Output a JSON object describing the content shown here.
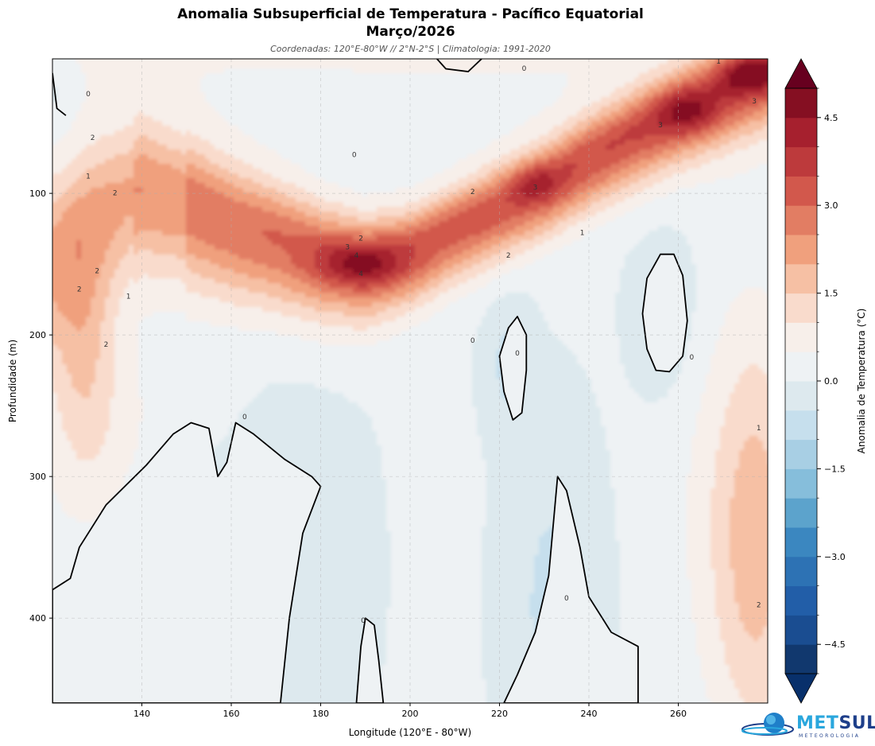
{
  "title_line_1": "Anomalia Subsuperficial de Temperatura - Pacífico Equatorial",
  "title_line_2": "Março/2026",
  "subtitle": "Coordenadas: 120°E-80°W // 2°N-2°S | Climatologia: 1991-2020",
  "logo": {
    "brand_part_1": "MET",
    "brand_part_2": "SUL",
    "tagline": "METEOROLOGIA"
  },
  "chart_data": {
    "type": "heatmap",
    "subtype": "filled-contour",
    "xlabel": "Longitude (120°E - 80°W)",
    "ylabel": "Profundidade (m)",
    "xlim": [
      120,
      280
    ],
    "ylim": [
      460,
      5
    ],
    "y_inverted": true,
    "x_ticks": [
      140,
      160,
      180,
      200,
      220,
      240,
      260
    ],
    "y_ticks": [
      100,
      200,
      300,
      400
    ],
    "grid": true,
    "colorbar": {
      "label": "Anomalia de Temperatura (°C)",
      "colormap": "RdBu_r",
      "min": -5,
      "max": 5,
      "step": 0.5,
      "extend": "both",
      "ticks": [
        4.5,
        3.0,
        1.5,
        0.0,
        -1.5,
        -3.0,
        -4.5
      ],
      "tick_labels": [
        "4.5",
        "3.0",
        "1.5",
        "0.0",
        "−1.5",
        "−3.0",
        "−4.5"
      ]
    },
    "contour_levels": [
      0,
      1,
      2,
      3,
      4
    ],
    "zero_contour": "thick black line",
    "contour_labels": [
      {
        "text": "0",
        "x": 128,
        "y": 30
      },
      {
        "text": "0",
        "x": 187.5,
        "y": 73
      },
      {
        "text": "0",
        "x": 225.5,
        "y": 12
      },
      {
        "text": "1",
        "x": 128,
        "y": 88
      },
      {
        "text": "1",
        "x": 137,
        "y": 173
      },
      {
        "text": "1",
        "x": 238.5,
        "y": 128
      },
      {
        "text": "1",
        "x": 278,
        "y": 266
      },
      {
        "text": "1",
        "x": 269,
        "y": 7
      },
      {
        "text": "2",
        "x": 129,
        "y": 61
      },
      {
        "text": "2",
        "x": 130,
        "y": 155
      },
      {
        "text": "2",
        "x": 126,
        "y": 168
      },
      {
        "text": "2",
        "x": 132,
        "y": 207
      },
      {
        "text": "2",
        "x": 134,
        "y": 100
      },
      {
        "text": "2",
        "x": 189,
        "y": 132
      },
      {
        "text": "2",
        "x": 214,
        "y": 99
      },
      {
        "text": "2",
        "x": 222,
        "y": 144
      },
      {
        "text": "2",
        "x": 278,
        "y": 391
      },
      {
        "text": "3",
        "x": 186,
        "y": 138
      },
      {
        "text": "3",
        "x": 228,
        "y": 96
      },
      {
        "text": "3",
        "x": 256,
        "y": 52
      },
      {
        "text": "3",
        "x": 277,
        "y": 35
      },
      {
        "text": "4",
        "x": 188,
        "y": 144
      },
      {
        "text": "4",
        "x": 189,
        "y": 157
      },
      {
        "text": "0",
        "x": 214,
        "y": 204
      },
      {
        "text": "0",
        "x": 224,
        "y": 213
      },
      {
        "text": "0",
        "x": 263,
        "y": 216
      },
      {
        "text": "0",
        "x": 163,
        "y": 258
      },
      {
        "text": "0",
        "x": 235,
        "y": 386
      },
      {
        "text": "0",
        "x": 189.5,
        "y": 402
      }
    ],
    "anomaly_field": {
      "description": "Approximate depth-longitude anomaly field (°C) read off the filled contours; values positive along a thermocline tongue rising from ~150 m near 190° to ~15 m near 278°, negative pockets (slightly below 0) near 160°-175° (240-460 m), 222° (180-260 m), 232° (300-460 m), 257° (140-230 m)",
      "warm_core": [
        {
          "x": 190,
          "y": 150,
          "value": 4.3
        },
        {
          "x": 181,
          "y": 140,
          "value": 3.6
        },
        {
          "x": 165,
          "y": 125,
          "value": 3.1
        },
        {
          "x": 152,
          "y": 115,
          "value": 2.6
        },
        {
          "x": 138,
          "y": 95,
          "value": 2.1
        },
        {
          "x": 212,
          "y": 120,
          "value": 3.3
        },
        {
          "x": 230,
          "y": 93,
          "value": 3.5
        },
        {
          "x": 245,
          "y": 70,
          "value": 3.5
        },
        {
          "x": 262,
          "y": 43,
          "value": 4.2
        },
        {
          "x": 275,
          "y": 15,
          "value": 4.5
        }
      ]
    }
  }
}
